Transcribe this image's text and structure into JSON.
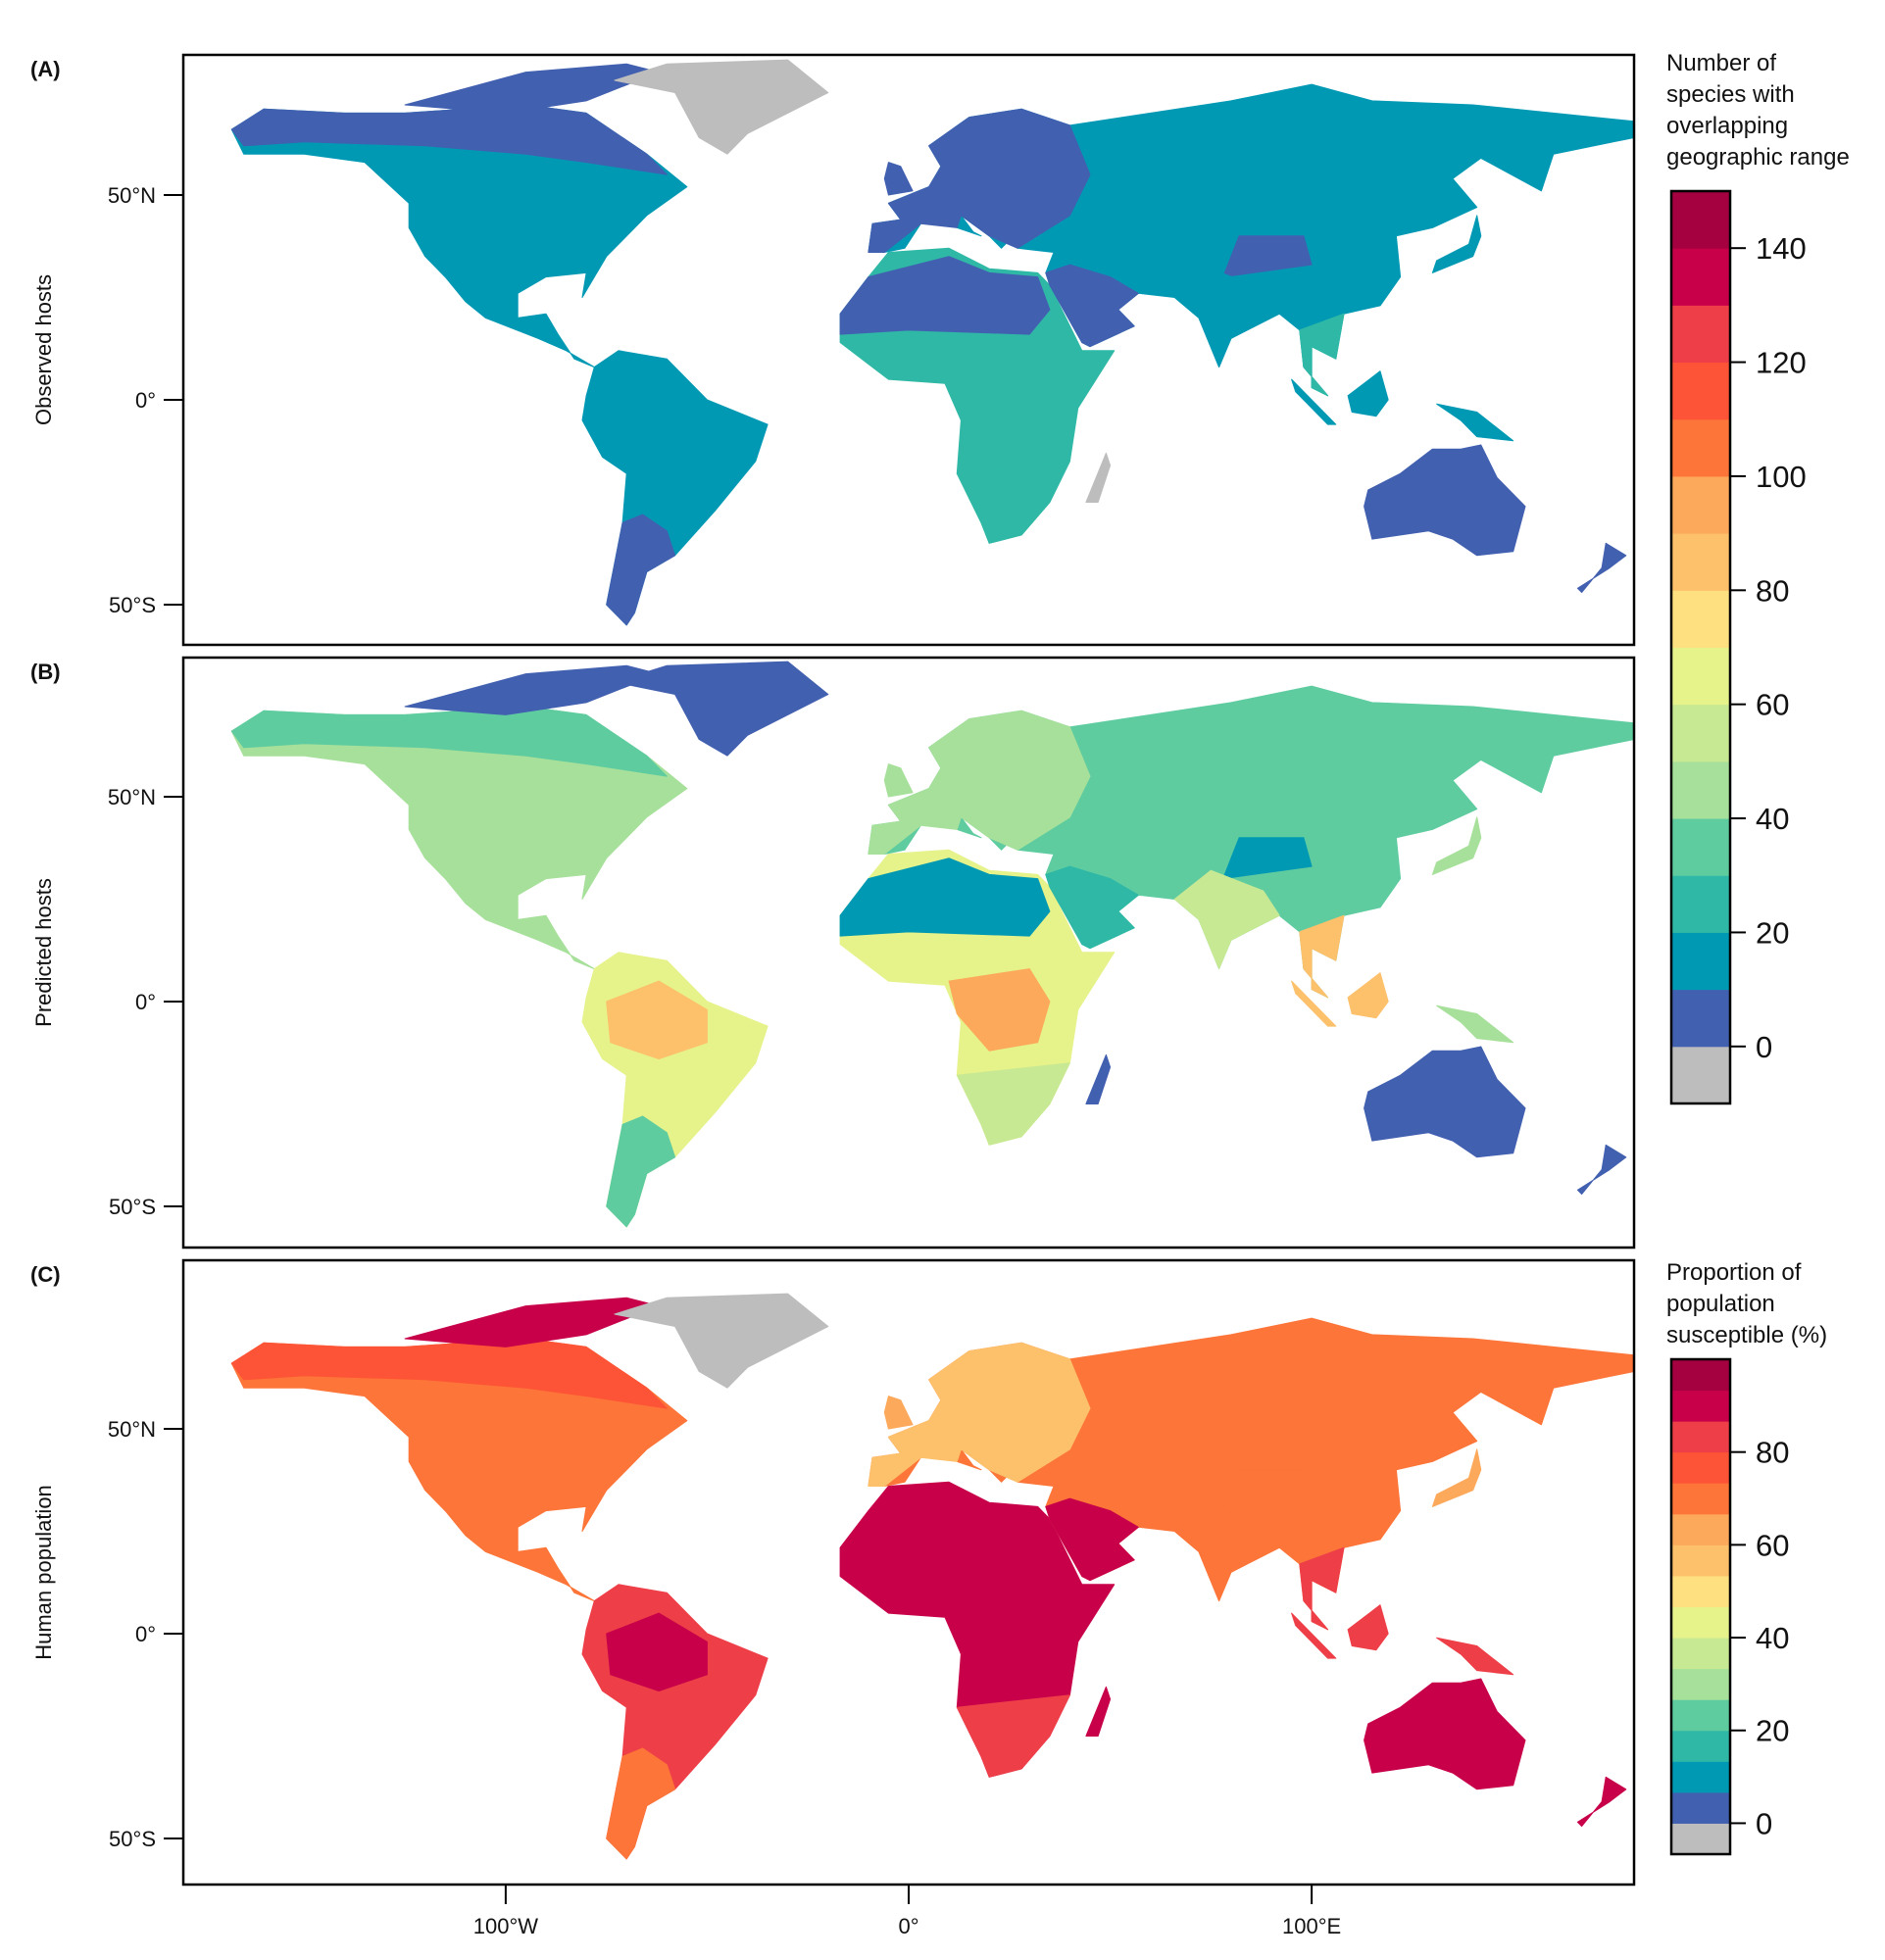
{
  "panels": [
    {
      "label": "(A)",
      "ylabel": "Observed hosts",
      "legend_index": 0
    },
    {
      "label": "(B)",
      "ylabel": "Predicted hosts",
      "legend_index": 0
    },
    {
      "label": "(C)",
      "ylabel": "Human population",
      "legend_index": 1
    }
  ],
  "lat_ticks": [
    {
      "lat": 50,
      "label": "50°N"
    },
    {
      "lat": 0,
      "label": "0°"
    },
    {
      "lat": -50,
      "label": "50°S"
    }
  ],
  "lon_ticks": [
    {
      "lon": -100,
      "label": "100°W"
    },
    {
      "lon": 0,
      "label": "0°"
    },
    {
      "lon": 100,
      "label": "100°E"
    }
  ],
  "legends": [
    {
      "title_lines": [
        "Number of",
        "species with",
        "overlapping",
        "geographic range"
      ],
      "min": -10,
      "max": 150,
      "ticks": [
        0,
        20,
        40,
        60,
        80,
        100,
        120,
        140
      ]
    },
    {
      "title_lines": [
        "Proportion of",
        "population",
        "susceptible (%)"
      ],
      "min": -6.67,
      "max": 100,
      "ticks": [
        0,
        20,
        40,
        60,
        80
      ]
    }
  ],
  "palette": [
    "#bdbdbd",
    "#4260b0",
    "#0099b4",
    "#2fb8a6",
    "#5fcca0",
    "#a7e09a",
    "#c8e993",
    "#e6f28a",
    "#fee080",
    "#fdc06b",
    "#fca95b",
    "#fd7538",
    "#fd5437",
    "#ee3f48",
    "#c8004a",
    "#a50040"
  ]
}
